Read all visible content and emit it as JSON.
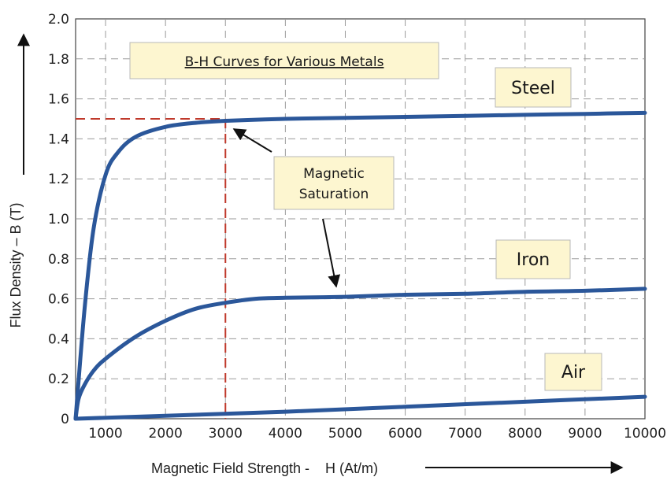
{
  "chart_data": {
    "type": "line",
    "title": "B-H Curves for Various Metals",
    "xlabel": "Magnetic Field Strength -    H (At/m)",
    "ylabel": "Flux Density – B (T)",
    "xlim": [
      500,
      10000
    ],
    "ylim": [
      0,
      2.0
    ],
    "x_ticks": [
      1000,
      2000,
      3000,
      4000,
      5000,
      6000,
      7000,
      8000,
      9000,
      10000
    ],
    "x_tick_labels": [
      "1000",
      "2000",
      "3000",
      "4000",
      "5000",
      "6000",
      "7000",
      "8000",
      "9000",
      "10000"
    ],
    "y_ticks": [
      0,
      0.2,
      0.4,
      0.6,
      0.8,
      1.0,
      1.2,
      1.4,
      1.6,
      1.8,
      2.0
    ],
    "y_tick_labels": [
      "0",
      "0.2",
      "0.4",
      "0.6",
      "0.8",
      "1.0",
      "1.2",
      "1.4",
      "1.6",
      "1.8",
      "2.0"
    ],
    "grid": true,
    "series": [
      {
        "name": "Steel",
        "x": [
          500,
          650,
          800,
          1000,
          1200,
          1500,
          2000,
          2500,
          3000,
          4000,
          5000,
          6000,
          7000,
          8000,
          9000,
          10000
        ],
        "y": [
          0,
          0.55,
          0.95,
          1.22,
          1.33,
          1.41,
          1.46,
          1.48,
          1.49,
          1.5,
          1.505,
          1.51,
          1.515,
          1.52,
          1.525,
          1.53
        ]
      },
      {
        "name": "Iron",
        "x": [
          500,
          550,
          650,
          800,
          1000,
          1500,
          2000,
          2500,
          3000,
          3500,
          4000,
          5000,
          6000,
          7000,
          8000,
          9000,
          10000
        ],
        "y": [
          0,
          0.1,
          0.17,
          0.24,
          0.3,
          0.41,
          0.49,
          0.55,
          0.58,
          0.6,
          0.605,
          0.61,
          0.62,
          0.625,
          0.635,
          0.64,
          0.65
        ]
      },
      {
        "name": "Air",
        "x": [
          500,
          2000,
          4000,
          6000,
          8000,
          10000
        ],
        "y": [
          0,
          0.015,
          0.035,
          0.06,
          0.085,
          0.11
        ]
      }
    ],
    "annotations": {
      "saturation_label": [
        "Magnetic",
        "Saturation"
      ],
      "saturation_point": {
        "x": 3000,
        "y": 1.5
      }
    }
  },
  "colors": {
    "curve": "#2b579a",
    "grid": "#9a9a9a",
    "saturation_line": "#c0392b",
    "box_fill": "#fdf6d0",
    "box_stroke": "#b8b8b8",
    "text": "#1a1a1a"
  }
}
